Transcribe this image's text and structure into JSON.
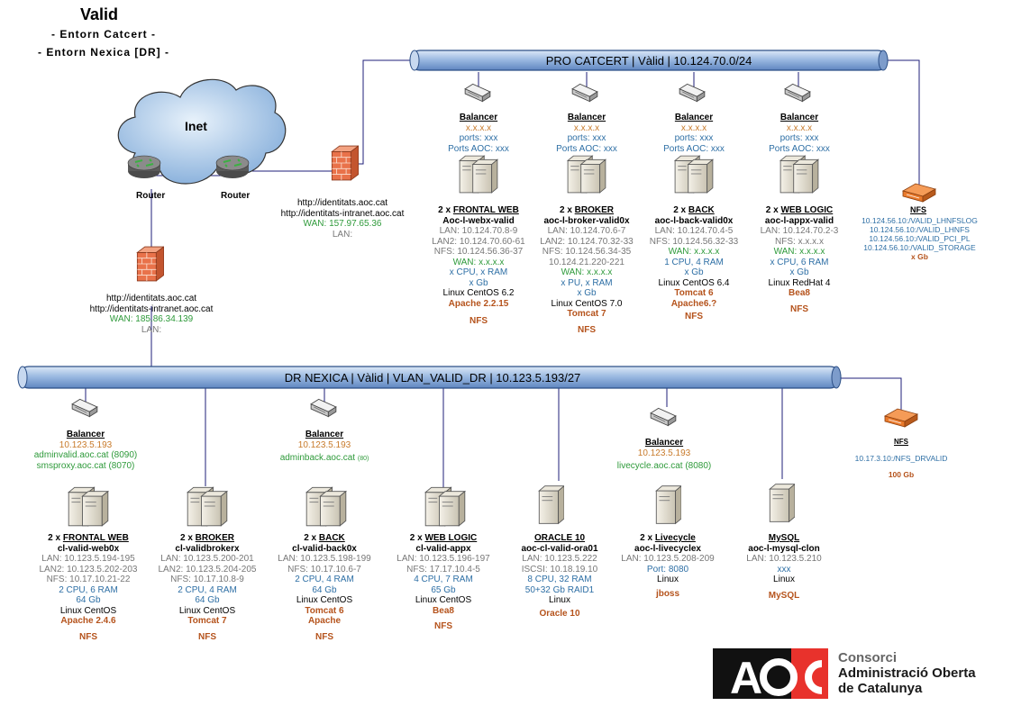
{
  "header": {
    "title": "Valid",
    "subtitle1": "- Entorn Catcert -",
    "subtitle2": "- Entorn Nexica [DR] -"
  },
  "colors": {
    "bus_fill": "#9dbbe2",
    "bus_stroke": "#2c4f86",
    "firewall": "#e9724a",
    "nfs": "#e97a2c",
    "logo_red": "#e8322c",
    "logo_black": "#111111"
  },
  "internet": {
    "cloud_label": "Inet",
    "router1": "Router",
    "router2": "Router"
  },
  "fw_top": {
    "line1": "http://identitats.aoc.cat",
    "line2": "http://identitats-intranet.aoc.cat",
    "wan": "WAN: 157.97.65.36",
    "lan": "LAN:"
  },
  "fw_left": {
    "line1": "http://identitats.aoc.cat",
    "line2": "http://identitats-intranet.aoc.cat",
    "wan": "WAN: 185.86.34.139",
    "lan": "LAN:"
  },
  "pro": {
    "bus_label": "PRO CATCERT | Vàlid |  10.124.70.0/24",
    "nfs": {
      "title": "NFS",
      "lines": [
        "10.124.56.10:/VALID_LHNFSLOG",
        "10.124.56.10:/VALID_LHNFS",
        "10.124.56.10:/VALID_PCI_PL",
        "10.124.56.10:/VALID_STORAGE"
      ],
      "size": "x Gb"
    },
    "groups": [
      {
        "bal_title": "Balancer",
        "bal_ip": "x.x.x.x",
        "bal_ports": "ports: xxx",
        "bal_aoc": "Ports AOC: xxx",
        "count": "2 x",
        "role": "FRONTAL WEB",
        "host": "Aoc-l-webx-valid",
        "lan": "LAN: 10.124.70.8-9",
        "lan2": "LAN2: 10.124.70.60-61",
        "nfs_ip": "NFS: 10.124.56.36-37",
        "wan": "WAN: x.x.x.x",
        "cpu": "x CPU, x RAM",
        "disk": "x Gb",
        "os": "Linux CentOS 6.2",
        "app": "Apache 2.2.15",
        "nfs": "NFS"
      },
      {
        "bal_title": "Balancer",
        "bal_ip": "x.x.x.x",
        "bal_ports": "ports: xxx",
        "bal_aoc": "Ports AOC: xxx",
        "count": "2 x",
        "role": "BROKER",
        "host": "aoc-l-broker-valid0x",
        "lan": "LAN: 10.124.70.6-7",
        "lan2": "LAN2: 10.124.70.32-33",
        "nfs_ip": "NFS: 10.124.56.34-35",
        "extra": "10.124.21.220-221",
        "wan": "WAN: x.x.x.x",
        "cpu": "x PU, x RAM",
        "disk": "x Gb",
        "os": "Linux CentOS 7.0",
        "app": "Tomcat 7",
        "nfs": "NFS"
      },
      {
        "bal_title": "Balancer",
        "bal_ip": "x.x.x.x",
        "bal_ports": "ports: xxx",
        "bal_aoc": "Ports AOC: xxx",
        "count": "2 x",
        "role": "BACK",
        "host": "aoc-l-back-valid0x",
        "lan": "LAN: 10.124.70.4-5",
        "nfs_ip": "NFS: 10.124.56.32-33",
        "wan": "WAN: x.x.x.x",
        "cpu": "1 CPU, 4 RAM",
        "disk": "x Gb",
        "os": "Linux CentOS 6.4",
        "app": "Tomcat 6",
        "app2": "Apache6.?",
        "nfs": "NFS"
      },
      {
        "bal_title": "Balancer",
        "bal_ip": "x.x.x.x",
        "bal_ports": "ports: xxx",
        "bal_aoc": "Ports AOC: xxx",
        "count": "2 x",
        "role": "WEB LOGIC",
        "host": "aoc-l-appx-valid",
        "lan": "LAN: 10.124.70.2-3",
        "nfs_ip": "NFS: x.x.x.x",
        "wan": "WAN: x.x.x.x",
        "cpu": "x CPU, 6 RAM",
        "disk": "x Gb",
        "os": "Linux RedHat 4",
        "app": "Bea8",
        "nfs": "NFS"
      }
    ]
  },
  "dr": {
    "bus_label": "DR NEXICA | Vàlid | VLAN_VALID_DR   |   10.123.5.193/27",
    "nfs": {
      "title": "NFS",
      "line": "10.17.3.10:/NFS_DRVALID",
      "size": "100 Gb"
    },
    "bal1": {
      "title": "Balancer",
      "ip": "10.123.5.193",
      "url1": "adminvalid.aoc.cat (8090)",
      "url2": "smsproxy.aoc.cat (8070)"
    },
    "bal2": {
      "title": "Balancer",
      "ip": "10.123.5.193",
      "url1": "adminback.aoc.cat",
      "port": "(80)"
    },
    "bal3": {
      "title": "Balancer",
      "ip": "10.123.5.193",
      "url1": "livecycle.aoc.cat (8080)"
    },
    "groups": [
      {
        "count": "2 x",
        "role": "FRONTAL WEB",
        "host": "cl-valid-web0x",
        "lines_gray": [
          "LAN: 10.123.5.194-195",
          "LAN2: 10.123.5.202-203",
          "NFS: 10.17.10.21-22"
        ],
        "lines_blue": [
          "2 CPU, 6 RAM",
          "64 Gb"
        ],
        "os": "Linux CentOS",
        "app": "Apache 2.4.6",
        "nfs": "NFS"
      },
      {
        "count": "2 x",
        "role": "BROKER",
        "host": "cl-validbrokerx",
        "lines_gray": [
          "LAN: 10.123.5.200-201",
          "LAN2: 10.123.5.204-205",
          "NFS: 10.17.10.8-9"
        ],
        "lines_blue": [
          "2 CPU, 4 RAM",
          "64 Gb"
        ],
        "os": "Linux CentOS",
        "app": "Tomcat 7",
        "nfs": "NFS"
      },
      {
        "count": "2 x",
        "role": "BACK",
        "host": "cl-valid-back0x",
        "lines_gray": [
          "LAN: 10.123.5.198-199",
          "NFS: 10.17.10.6-7"
        ],
        "lines_blue": [
          "2 CPU, 4 RAM",
          "64 Gb"
        ],
        "os": "Linux CentOS",
        "app": "Tomcat 6",
        "app2": "Apache",
        "nfs": "NFS"
      },
      {
        "count": "2 x",
        "role": "WEB LOGIC",
        "host": "cl-valid-appx",
        "lines_gray": [
          "LAN: 10.123.5.196-197",
          "NFS: 17.17.10.4-5"
        ],
        "lines_blue": [
          "4 CPU, 7 RAM",
          "65 Gb"
        ],
        "os": "Linux CentOS",
        "app": "Bea8",
        "nfs": "NFS"
      },
      {
        "count": "",
        "role": "ORACLE 10",
        "host": "aoc-cl-valid-ora01",
        "lines_gray": [
          "LAN: 10.123.5.222",
          "ISCSI: 10.18.19.10"
        ],
        "lines_blue": [
          "8 CPU, 32 RAM",
          "50+32 Gb RAID1"
        ],
        "os": "Linux",
        "app": "Oracle 10"
      },
      {
        "count": "2 x",
        "role": "Livecycle",
        "host": "aoc-l-livecyclex",
        "lines_gray": [
          "LAN: 10.123.5.208-209"
        ],
        "lines_blue": [
          "Port: 8080"
        ],
        "os": "Linux",
        "app": "jboss"
      },
      {
        "count": "",
        "role": "MySQL",
        "host": "aoc-l-mysql-clon",
        "lines_gray": [
          "LAN: 10.123.5.210"
        ],
        "lines_blue": [
          "xxx"
        ],
        "os": "Linux",
        "app": "MySQL"
      }
    ]
  },
  "logo": {
    "mark": "AOC",
    "line1": "Consorci",
    "line2": "Administració Oberta",
    "line3": "de Catalunya"
  }
}
